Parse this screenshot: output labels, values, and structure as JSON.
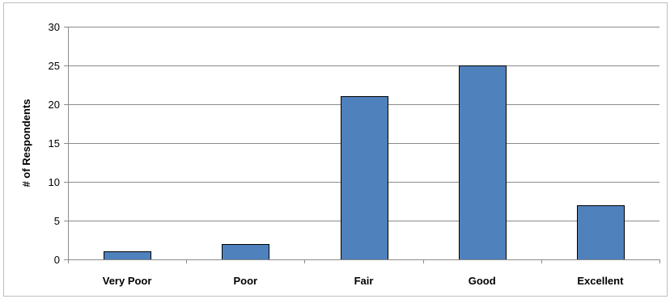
{
  "chart_data": {
    "type": "bar",
    "title": "",
    "xlabel": "",
    "ylabel": "# of Respondents",
    "categories": [
      "Very Poor",
      "Poor",
      "Fair",
      "Good",
      "Excellent"
    ],
    "values": [
      1,
      2,
      21,
      25,
      7
    ],
    "ylim": [
      0,
      30
    ],
    "yticks": [
      0,
      5,
      10,
      15,
      20,
      25,
      30
    ],
    "grid": true,
    "legend": "none",
    "bar_color": "#4f81bd",
    "bar_edge_color": "#000000"
  }
}
